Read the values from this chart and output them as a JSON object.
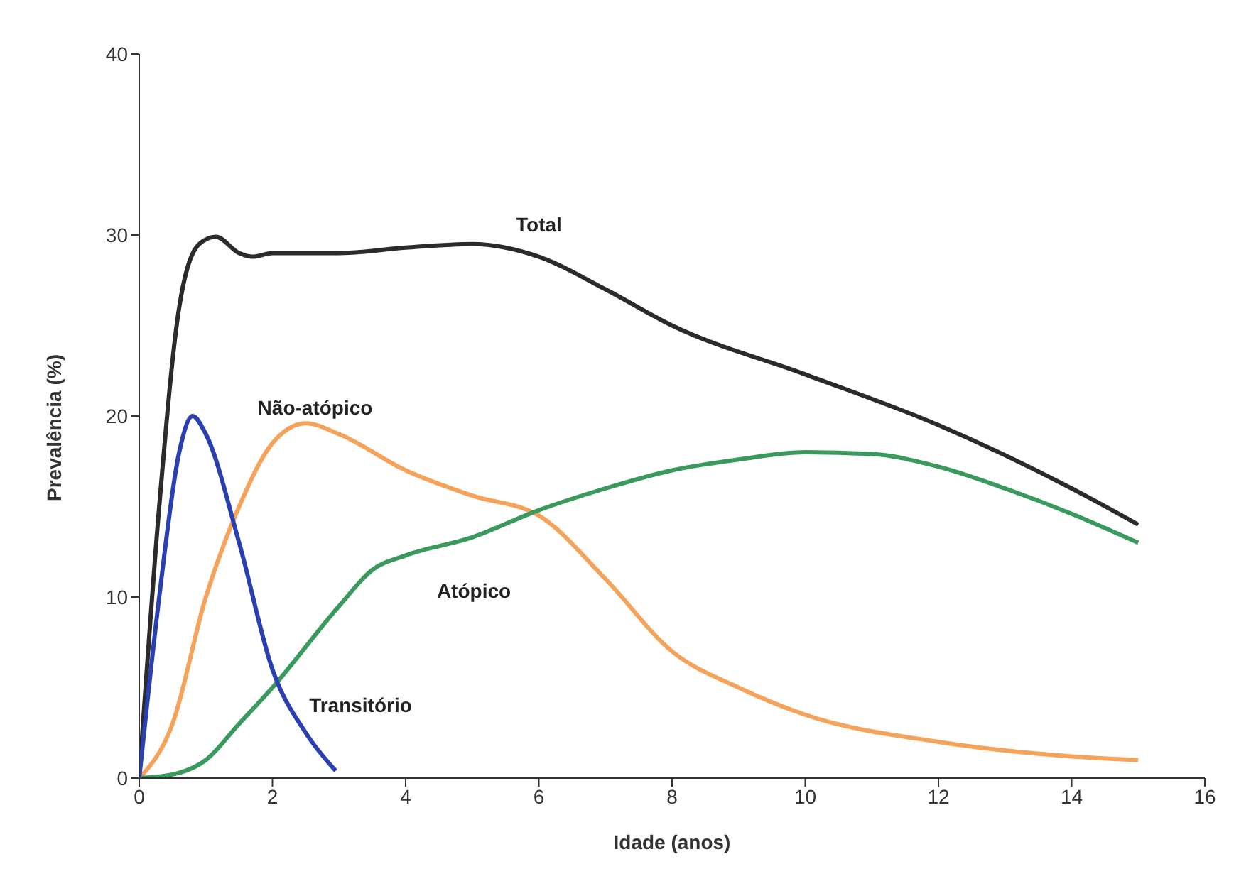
{
  "chart_data": {
    "type": "line",
    "xlabel": "Idade (anos)",
    "ylabel": "Prevalência (%)",
    "xlim": [
      0,
      16
    ],
    "xticks": [
      0,
      2,
      4,
      6,
      8,
      10,
      12,
      14,
      16
    ],
    "ylim": [
      0,
      40
    ],
    "yticks": [
      0,
      10,
      20,
      30,
      40
    ],
    "grid": false,
    "legend": false,
    "marker": "none",
    "line_style": "solid",
    "series": [
      {
        "name": "Total",
        "color": "#2b2b2b",
        "x": [
          0,
          0.3,
          0.6,
          0.9,
          1.15,
          1.5,
          1.7,
          2,
          3,
          4,
          5,
          6,
          7,
          8,
          10,
          12,
          14,
          15
        ],
        "values": [
          0,
          15,
          26,
          29.5,
          29.9,
          29,
          28.8,
          29,
          29,
          29.3,
          29.5,
          28.8,
          27,
          25,
          22.3,
          19.5,
          16,
          14
        ]
      },
      {
        "name": "Não-atópico",
        "color": "#f5a35a",
        "x": [
          0,
          0.5,
          1,
          1.5,
          2,
          2.5,
          3,
          4,
          5,
          6,
          7,
          8,
          9,
          10,
          12,
          14,
          15
        ],
        "values": [
          0,
          3,
          10,
          15,
          18.5,
          19.6,
          19,
          17,
          15.6,
          14.5,
          11,
          7,
          5,
          3.5,
          2,
          1.2,
          1
        ]
      },
      {
        "name": "Atópico",
        "color": "#3a9a5e",
        "x": [
          0,
          0.5,
          1,
          1.5,
          2,
          3,
          3.5,
          4,
          5,
          6,
          7,
          8,
          9,
          10,
          11,
          12,
          13,
          14,
          15
        ],
        "values": [
          0,
          0.2,
          1,
          3,
          5,
          9.5,
          11.5,
          12.3,
          13.3,
          14.8,
          16,
          17,
          17.6,
          18,
          17.9,
          17.2,
          16,
          14.6,
          13
        ]
      },
      {
        "name": "Transitório",
        "color": "#2a3fb0",
        "x": [
          0,
          0.3,
          0.6,
          0.8,
          1,
          1.5,
          2,
          2.5,
          2.95
        ],
        "values": [
          0,
          10,
          18,
          20,
          19,
          13,
          6,
          2.5,
          0.4
        ]
      }
    ]
  }
}
